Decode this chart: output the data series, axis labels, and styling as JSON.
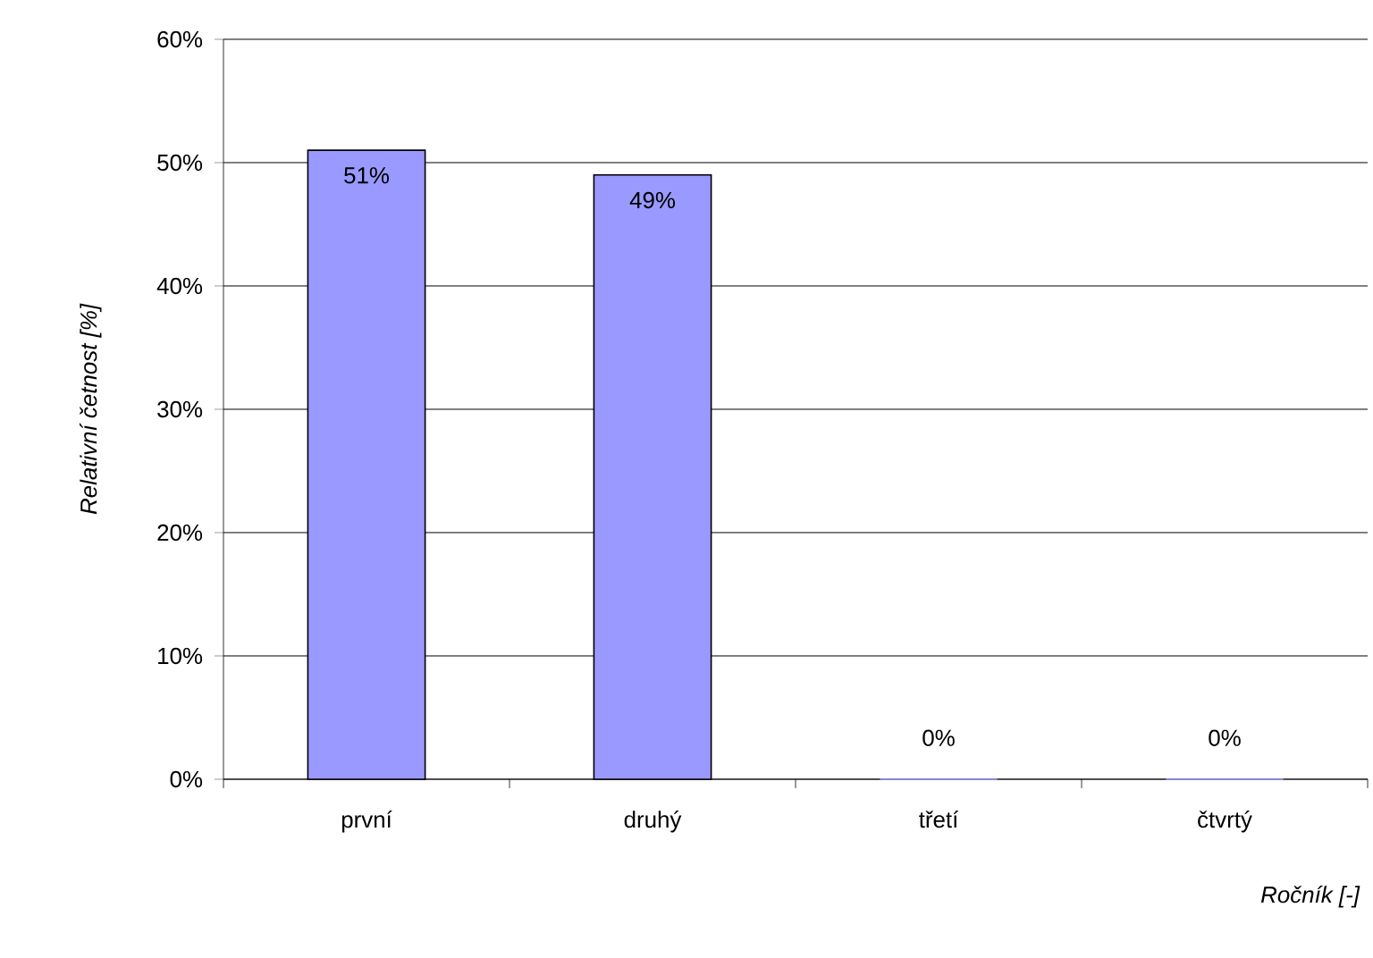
{
  "chart_data": {
    "type": "bar",
    "xlabel": "Ročník [-]",
    "ylabel": "Relativní četnost [%]",
    "categories": [
      "první",
      "druhý",
      "třetí",
      "čtvrtý"
    ],
    "values": [
      51,
      49,
      0,
      0
    ],
    "value_labels": [
      "51%",
      "49%",
      "0%",
      "0%"
    ],
    "color": "#9999ff",
    "ylim": [
      0,
      60
    ],
    "yticks": [
      {
        "value": 0,
        "label": "0%"
      },
      {
        "value": 10,
        "label": "10%"
      },
      {
        "value": 20,
        "label": "20%"
      },
      {
        "value": 30,
        "label": "30%"
      },
      {
        "value": 40,
        "label": "40%"
      },
      {
        "value": 50,
        "label": "50%"
      },
      {
        "value": 60,
        "label": "60%"
      }
    ],
    "grid": "y"
  }
}
